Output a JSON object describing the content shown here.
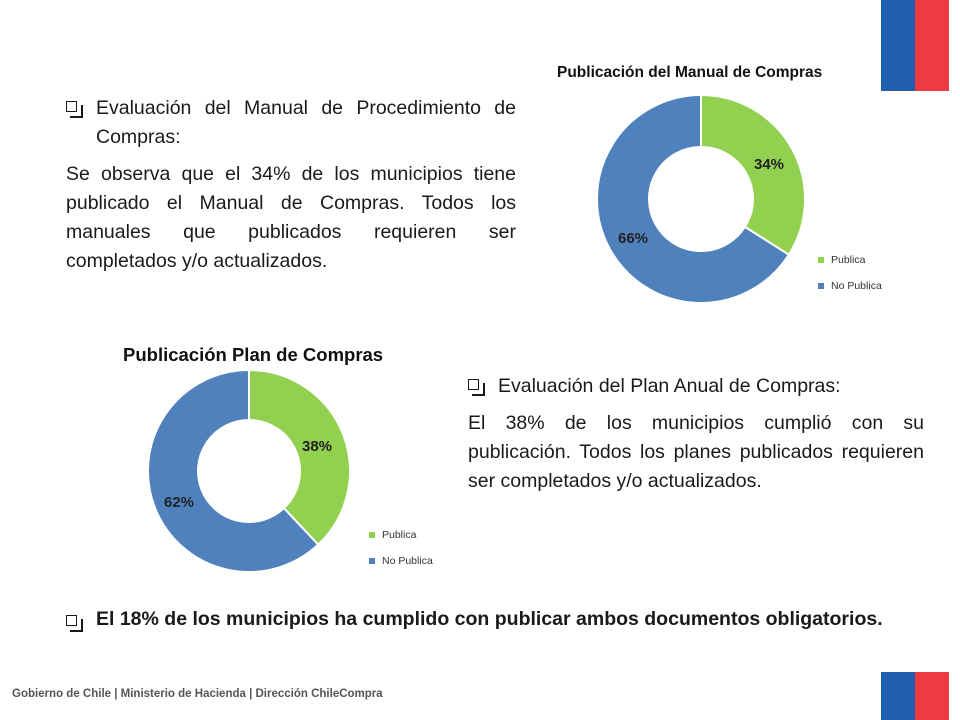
{
  "section1": {
    "heading": "Evaluación del Manual de Procedimiento de Compras:",
    "body": "Se observa que el 34% de los municipios tiene publicado el Manual de Compras. Todos los manuales que publicados requieren ser completados y/o actualizados."
  },
  "section2": {
    "heading": "Evaluación del Plan Anual de Compras:",
    "body": "El 38% de los municipios cumplió con su publicación. Todos los planes publicados requieren ser completados y/o actualizados."
  },
  "conclusion": "El 18% de los municipios ha cumplido con publicar ambos documentos obligatorios.",
  "footer": "Gobierno de Chile | Ministerio de Hacienda | Dirección ChileCompra",
  "colors": {
    "publica": "#92d050",
    "no_publica": "#4f81bd",
    "flag_blue": "#1f5fae",
    "flag_red": "#ee3a43"
  },
  "chart_data": [
    {
      "type": "pie",
      "title": "Publicación del Manual de Compras",
      "categories": [
        "Publica",
        "No Publica"
      ],
      "values": [
        34,
        66
      ],
      "labels": [
        "34%",
        "66%"
      ],
      "legend": "right"
    },
    {
      "type": "pie",
      "title": "Publicación Plan de Compras",
      "categories": [
        "Publica",
        "No Publica"
      ],
      "values": [
        38,
        62
      ],
      "labels": [
        "38%",
        "62%"
      ],
      "legend": "right"
    }
  ]
}
